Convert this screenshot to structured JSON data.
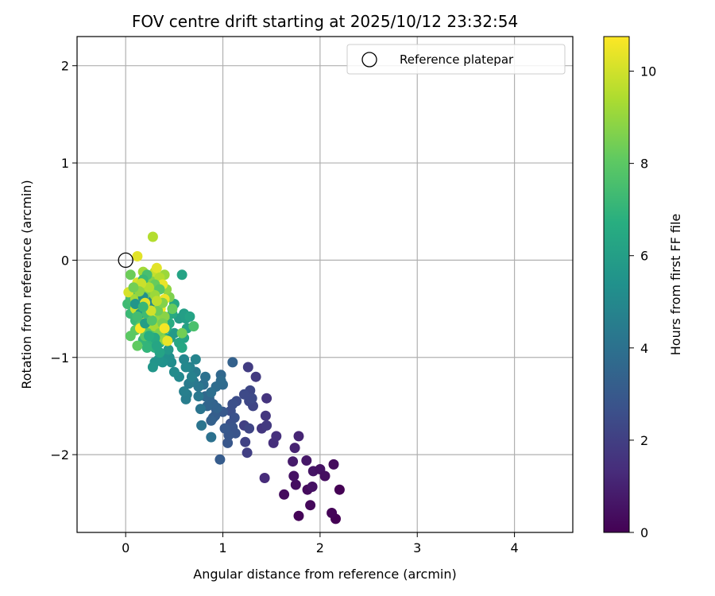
{
  "chart_data": {
    "type": "scatter",
    "title": "FOV centre drift starting at 2025/10/12 23:32:54",
    "xlabel": "Angular distance from reference (arcmin)",
    "ylabel": "Rotation from reference (arcmin)",
    "xlim": [
      -0.5,
      4.6
    ],
    "ylim": [
      -2.8,
      2.3
    ],
    "xticks": [
      0,
      1,
      2,
      3,
      4
    ],
    "yticks": [
      -2,
      -1,
      0,
      1,
      2
    ],
    "grid": true,
    "legend": {
      "placement": "top-right",
      "entries": [
        "Reference platepar"
      ]
    },
    "reference_point": {
      "x": 0,
      "y": 0,
      "label": "Reference platepar"
    },
    "colorbar": {
      "label": "Hours from first FF file",
      "range": [
        0,
        10.75
      ],
      "ticks": [
        0,
        2,
        4,
        6,
        8,
        10
      ],
      "colormap": "viridis"
    },
    "series": [
      {
        "points": [
          [
            2.2,
            -2.36,
            0.0
          ],
          [
            2.16,
            -2.66,
            0.0
          ],
          [
            1.78,
            -2.63,
            0.1
          ],
          [
            2.12,
            -2.6,
            0.1
          ],
          [
            1.9,
            -2.52,
            0.2
          ],
          [
            1.63,
            -2.41,
            0.3
          ],
          [
            1.75,
            -2.31,
            0.4
          ],
          [
            1.87,
            -2.36,
            0.3
          ],
          [
            1.92,
            -2.33,
            0.5
          ],
          [
            1.73,
            -2.22,
            0.5
          ],
          [
            1.93,
            -2.17,
            0.6
          ],
          [
            2.0,
            -2.15,
            0.5
          ],
          [
            2.05,
            -2.22,
            0.4
          ],
          [
            2.14,
            -2.1,
            0.3
          ],
          [
            1.86,
            -2.06,
            0.7
          ],
          [
            1.72,
            -2.07,
            0.8
          ],
          [
            1.74,
            -1.93,
            1.0
          ],
          [
            1.78,
            -1.81,
            1.1
          ],
          [
            1.43,
            -2.24,
            1.3
          ],
          [
            1.52,
            -1.88,
            1.4
          ],
          [
            1.55,
            -1.81,
            1.5
          ],
          [
            1.45,
            -1.42,
            1.6
          ],
          [
            1.44,
            -1.6,
            1.7
          ],
          [
            1.4,
            -1.73,
            1.7
          ],
          [
            1.45,
            -1.7,
            1.8
          ],
          [
            1.34,
            -1.2,
            1.8
          ],
          [
            1.26,
            -1.1,
            1.9
          ],
          [
            1.22,
            -1.7,
            2.0
          ],
          [
            1.25,
            -1.98,
            2.0
          ],
          [
            1.23,
            -1.87,
            2.1
          ],
          [
            1.27,
            -1.73,
            2.2
          ],
          [
            1.31,
            -1.5,
            2.2
          ],
          [
            1.27,
            -1.45,
            2.3
          ],
          [
            1.28,
            -1.34,
            2.3
          ],
          [
            1.22,
            -1.38,
            2.4
          ],
          [
            1.3,
            -1.42,
            2.4
          ],
          [
            1.14,
            -1.45,
            2.5
          ],
          [
            1.1,
            -1.48,
            2.6
          ],
          [
            1.08,
            -1.55,
            2.6
          ],
          [
            1.12,
            -1.62,
            2.7
          ],
          [
            1.08,
            -1.68,
            2.7
          ],
          [
            1.1,
            -1.72,
            2.8
          ],
          [
            1.13,
            -1.78,
            2.8
          ],
          [
            1.06,
            -1.8,
            2.9
          ],
          [
            1.05,
            -1.88,
            2.9
          ],
          [
            1.02,
            -1.73,
            3.0
          ],
          [
            1.0,
            -1.56,
            3.0
          ],
          [
            0.97,
            -2.05,
            3.1
          ],
          [
            0.93,
            -1.53,
            3.1
          ],
          [
            0.9,
            -1.62,
            3.2
          ],
          [
            0.92,
            -1.6,
            3.2
          ],
          [
            0.88,
            -1.65,
            3.3
          ],
          [
            0.94,
            -1.52,
            3.4
          ],
          [
            0.9,
            -1.48,
            3.4
          ],
          [
            0.86,
            -1.42,
            3.5
          ],
          [
            0.84,
            -1.5,
            3.5
          ],
          [
            0.82,
            -1.4,
            3.6
          ],
          [
            1.1,
            -1.05,
            3.3
          ],
          [
            0.98,
            -1.18,
            3.6
          ],
          [
            1.0,
            -1.28,
            3.7
          ],
          [
            0.98,
            -1.24,
            3.8
          ],
          [
            0.93,
            -1.3,
            3.8
          ],
          [
            0.88,
            -1.36,
            3.9
          ],
          [
            0.8,
            -1.28,
            3.9
          ],
          [
            0.82,
            -1.2,
            4.0
          ],
          [
            0.88,
            -1.82,
            4.0
          ],
          [
            0.78,
            -1.7,
            4.1
          ],
          [
            0.77,
            -1.53,
            4.1
          ],
          [
            0.75,
            -1.3,
            4.2
          ],
          [
            0.75,
            -1.4,
            4.3
          ],
          [
            0.7,
            -1.25,
            4.3
          ],
          [
            0.72,
            -1.15,
            4.4
          ],
          [
            0.65,
            -1.27,
            4.4
          ],
          [
            0.63,
            -1.38,
            4.5
          ],
          [
            0.62,
            -1.43,
            4.5
          ],
          [
            0.6,
            -1.35,
            4.6
          ],
          [
            0.68,
            -1.2,
            4.7
          ],
          [
            0.66,
            -1.1,
            4.7
          ],
          [
            0.72,
            -1.02,
            4.8
          ],
          [
            0.6,
            -1.02,
            4.9
          ],
          [
            0.62,
            -1.1,
            5.0
          ],
          [
            0.55,
            -1.2,
            5.0
          ],
          [
            0.5,
            -1.15,
            5.1
          ],
          [
            0.47,
            -1.05,
            5.2
          ],
          [
            0.45,
            -1.0,
            5.3
          ],
          [
            0.4,
            -0.98,
            5.3
          ],
          [
            0.38,
            -1.05,
            5.4
          ],
          [
            0.34,
            -1.02,
            5.5
          ],
          [
            0.3,
            -1.05,
            5.5
          ],
          [
            0.28,
            -1.1,
            5.6
          ],
          [
            0.34,
            -0.85,
            5.6
          ],
          [
            0.44,
            -0.92,
            5.7
          ],
          [
            0.46,
            -0.8,
            5.8
          ],
          [
            0.5,
            -0.75,
            5.8
          ],
          [
            0.55,
            -0.6,
            5.9
          ],
          [
            0.6,
            -0.55,
            6.0
          ],
          [
            0.62,
            -0.6,
            6.0
          ],
          [
            0.63,
            -0.7,
            6.1
          ],
          [
            0.66,
            -0.58,
            6.2
          ],
          [
            0.6,
            -0.8,
            6.2
          ],
          [
            0.55,
            -0.85,
            6.3
          ],
          [
            0.58,
            -0.9,
            6.4
          ],
          [
            0.5,
            -0.45,
            6.4
          ],
          [
            0.48,
            -0.55,
            6.5
          ],
          [
            0.45,
            -0.65,
            6.6
          ],
          [
            0.42,
            -0.7,
            6.6
          ],
          [
            0.38,
            -0.78,
            6.7
          ],
          [
            0.35,
            -0.85,
            6.8
          ],
          [
            0.3,
            -0.9,
            6.8
          ],
          [
            0.25,
            -0.88,
            6.9
          ],
          [
            0.22,
            -0.9,
            7.0
          ],
          [
            0.18,
            -0.82,
            7.0
          ],
          [
            0.15,
            -0.7,
            7.1
          ],
          [
            0.1,
            -0.62,
            7.2
          ],
          [
            0.05,
            -0.55,
            7.2
          ],
          [
            0.02,
            -0.45,
            7.3
          ],
          [
            0.05,
            -0.4,
            7.4
          ],
          [
            0.08,
            -0.35,
            7.4
          ],
          [
            0.12,
            -0.45,
            7.5
          ],
          [
            0.18,
            -0.55,
            7.6
          ],
          [
            0.22,
            -0.62,
            7.6
          ],
          [
            0.28,
            -0.58,
            7.7
          ],
          [
            0.32,
            -0.65,
            7.7
          ],
          [
            0.25,
            -0.72,
            7.8
          ],
          [
            0.2,
            -0.78,
            7.9
          ],
          [
            0.15,
            -0.68,
            7.9
          ],
          [
            0.1,
            -0.72,
            8.0
          ],
          [
            0.05,
            -0.78,
            8.0
          ],
          [
            0.12,
            -0.88,
            8.1
          ],
          [
            0.58,
            -0.15,
            6.2
          ],
          [
            0.7,
            -0.68,
            7.6
          ],
          [
            0.58,
            -0.75,
            8.4
          ],
          [
            0.48,
            -0.5,
            8.2
          ],
          [
            0.45,
            -0.38,
            8.6
          ],
          [
            0.42,
            -0.3,
            8.9
          ],
          [
            0.4,
            -0.15,
            9.1
          ],
          [
            0.35,
            -0.22,
            9.3
          ],
          [
            0.3,
            -0.3,
            9.4
          ],
          [
            0.25,
            -0.25,
            9.6
          ],
          [
            0.2,
            -0.35,
            9.7
          ],
          [
            0.15,
            -0.42,
            9.8
          ],
          [
            0.1,
            -0.5,
            9.9
          ],
          [
            0.05,
            -0.15,
            8.3
          ],
          [
            0.03,
            -0.33,
            10.1
          ],
          [
            0.12,
            -0.23,
            10.2
          ],
          [
            0.18,
            -0.12,
            9.2
          ],
          [
            0.25,
            -0.2,
            8.7
          ],
          [
            0.3,
            -0.12,
            9.8
          ],
          [
            0.32,
            -0.08,
            10.3
          ],
          [
            0.35,
            -0.18,
            9.5
          ],
          [
            0.38,
            -0.25,
            10.4
          ],
          [
            0.4,
            -0.4,
            10.5
          ],
          [
            0.36,
            -0.5,
            10.6
          ],
          [
            0.32,
            -0.55,
            10.2
          ],
          [
            0.28,
            -0.45,
            9.9
          ],
          [
            0.22,
            -0.48,
            10.5
          ],
          [
            0.2,
            -0.6,
            10.1
          ],
          [
            0.25,
            -0.65,
            9.6
          ],
          [
            0.3,
            -0.68,
            9.3
          ],
          [
            0.35,
            -0.6,
            9.0
          ],
          [
            0.4,
            -0.58,
            8.8
          ],
          [
            0.38,
            -0.65,
            8.5
          ],
          [
            0.35,
            -0.75,
            8.6
          ],
          [
            0.4,
            -0.82,
            8.9
          ],
          [
            0.43,
            -0.83,
            10.4
          ],
          [
            0.4,
            -0.7,
            10.6
          ],
          [
            0.15,
            -0.7,
            10.7
          ],
          [
            0.12,
            0.04,
            10.3
          ],
          [
            0.28,
            0.24,
            9.5
          ],
          [
            0.1,
            -0.4,
            9.2
          ],
          [
            0.2,
            -0.3,
            8.8
          ],
          [
            0.25,
            -0.35,
            8.5
          ],
          [
            0.3,
            -0.25,
            8.2
          ],
          [
            0.35,
            -0.3,
            7.9
          ],
          [
            0.22,
            -0.15,
            7.5
          ],
          [
            0.18,
            -0.2,
            7.2
          ],
          [
            0.25,
            -0.5,
            6.9
          ],
          [
            0.3,
            -0.8,
            6.5
          ],
          [
            0.35,
            -0.95,
            6.2
          ],
          [
            0.2,
            -0.65,
            6.0
          ],
          [
            0.15,
            -0.55,
            5.8
          ],
          [
            0.1,
            -0.45,
            5.6
          ],
          [
            0.18,
            -0.38,
            5.3
          ],
          [
            0.28,
            -0.42,
            5.0
          ],
          [
            0.22,
            -0.55,
            7.3
          ],
          [
            0.27,
            -0.62,
            7.8
          ],
          [
            0.33,
            -0.52,
            8.3
          ],
          [
            0.38,
            -0.44,
            8.7
          ],
          [
            0.3,
            -0.36,
            9.1
          ],
          [
            0.24,
            -0.28,
            9.5
          ],
          [
            0.16,
            -0.24,
            9.9
          ],
          [
            0.2,
            -0.44,
            10.3
          ],
          [
            0.26,
            -0.52,
            10.0
          ],
          [
            0.32,
            -0.42,
            9.7
          ],
          [
            0.14,
            -0.32,
            8.9
          ],
          [
            0.08,
            -0.28,
            8.4
          ],
          [
            0.12,
            -0.58,
            7.4
          ],
          [
            0.18,
            -0.48,
            7.1
          ],
          [
            0.24,
            -0.78,
            6.7
          ],
          [
            0.32,
            -0.88,
            6.3
          ]
        ]
      }
    ]
  }
}
